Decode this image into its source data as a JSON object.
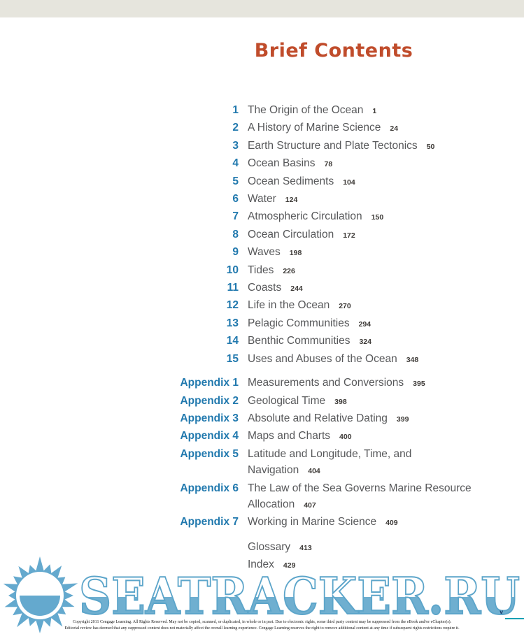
{
  "header": {
    "title": "Brief Contents"
  },
  "chapters": [
    {
      "num": "1",
      "title": "The Origin of the Ocean",
      "page": "1"
    },
    {
      "num": "2",
      "title": "A History of Marine Science",
      "page": "24"
    },
    {
      "num": "3",
      "title": "Earth Structure and Plate Tectonics",
      "page": "50"
    },
    {
      "num": "4",
      "title": "Ocean Basins",
      "page": "78"
    },
    {
      "num": "5",
      "title": "Ocean Sediments",
      "page": "104"
    },
    {
      "num": "6",
      "title": "Water",
      "page": "124"
    },
    {
      "num": "7",
      "title": "Atmospheric Circulation",
      "page": "150"
    },
    {
      "num": "8",
      "title": "Ocean Circulation",
      "page": "172"
    },
    {
      "num": "9",
      "title": "Waves",
      "page": "198"
    },
    {
      "num": "10",
      "title": "Tides",
      "page": "226"
    },
    {
      "num": "11",
      "title": "Coasts",
      "page": "244"
    },
    {
      "num": "12",
      "title": "Life in the Ocean",
      "page": "270"
    },
    {
      "num": "13",
      "title": "Pelagic Communities",
      "page": "294"
    },
    {
      "num": "14",
      "title": "Benthic Communities",
      "page": "324"
    },
    {
      "num": "15",
      "title": "Uses and Abuses of the Ocean",
      "page": "348"
    }
  ],
  "appendices": [
    {
      "label": "Appendix 1",
      "title": "Measurements and Conversions",
      "page": "395"
    },
    {
      "label": "Appendix 2",
      "title": "Geological Time",
      "page": "398"
    },
    {
      "label": "Appendix 3",
      "title": "Absolute and Relative Dating",
      "page": "399"
    },
    {
      "label": "Appendix 4",
      "title": "Maps and Charts",
      "page": "400"
    },
    {
      "label": "Appendix 5",
      "title": "Latitude and Longitude, Time, and Navigation",
      "page": "404"
    },
    {
      "label": "Appendix 6",
      "title": "The Law of the Sea Governs Marine Resource Allocation",
      "page": "407"
    },
    {
      "label": "Appendix 7",
      "title": "Working in Marine Science",
      "page": "409"
    }
  ],
  "back_matter": [
    {
      "title": "Glossary",
      "page": "413"
    },
    {
      "title": "Index",
      "page": "429"
    }
  ],
  "watermark": {
    "text": "SEATRACKER.RU",
    "corner_mark": "v"
  },
  "footer": {
    "line1": "Copyright 2011 Cengage Learning. All Rights Reserved. May not be copied, scanned, or duplicated, in whole or in part. Due to electronic rights, some third party content may be suppressed from the eBook and/or eChapter(s).",
    "line2": "Editorial review has deemed that any suppressed content does not materially affect the overall learning experience. Cengage Learning reserves the right to remove additional content at any time if subsequent rights restrictions require it."
  },
  "colors": {
    "topbar_beige": "#e6e5dd",
    "title_orange": "#c04c2b",
    "accent_blue": "#2179ae",
    "text_gray": "#57585a",
    "page_number_dark": "#3d3a37",
    "watermark_blue": "#6fafd0",
    "corner_line_teal": "#13a0b4"
  }
}
